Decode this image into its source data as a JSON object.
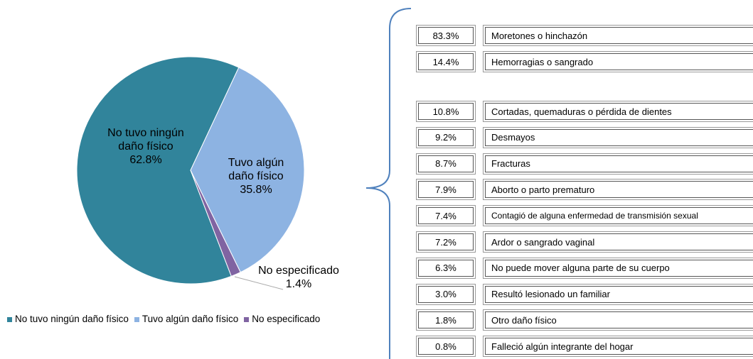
{
  "chart_data": {
    "type": "pie",
    "categories": [
      "No tuvo ningún daño físico",
      "Tuvo algún daño físico",
      "No especificado"
    ],
    "values": [
      62.8,
      35.8,
      1.4
    ],
    "value_labels": [
      "62.8%",
      "35.8%",
      "1.4%"
    ],
    "colors": [
      "#31849b",
      "#8db3e2",
      "#8064a2"
    ],
    "legend": "bottom"
  },
  "list": {
    "groups": [
      [
        {
          "percent": "83.3%",
          "label": "Moretones o hinchazón"
        },
        {
          "percent": "14.4%",
          "label": "Hemorragias o sangrado"
        }
      ],
      [
        {
          "percent": "10.8%",
          "label": "Cortadas, quemaduras o pérdida de dientes"
        },
        {
          "percent": "9.2%",
          "label": "Desmayos"
        },
        {
          "percent": "8.7%",
          "label": "Fracturas"
        },
        {
          "percent": "7.9%",
          "label": "Aborto o parto prematuro"
        },
        {
          "percent": "7.4%",
          "label": "Contagió de alguna enfermedad de transmisión sexual"
        },
        {
          "percent": "7.2%",
          "label": "Ardor o sangrado vaginal"
        },
        {
          "percent": "6.3%",
          "label": "No puede mover alguna parte de su cuerpo"
        },
        {
          "percent": "3.0%",
          "label": "Resultó lesionado un familiar"
        },
        {
          "percent": "1.8%",
          "label": "Otro daño físico"
        },
        {
          "percent": "0.8%",
          "label": "Falleció algún integrante del hogar"
        }
      ]
    ]
  }
}
